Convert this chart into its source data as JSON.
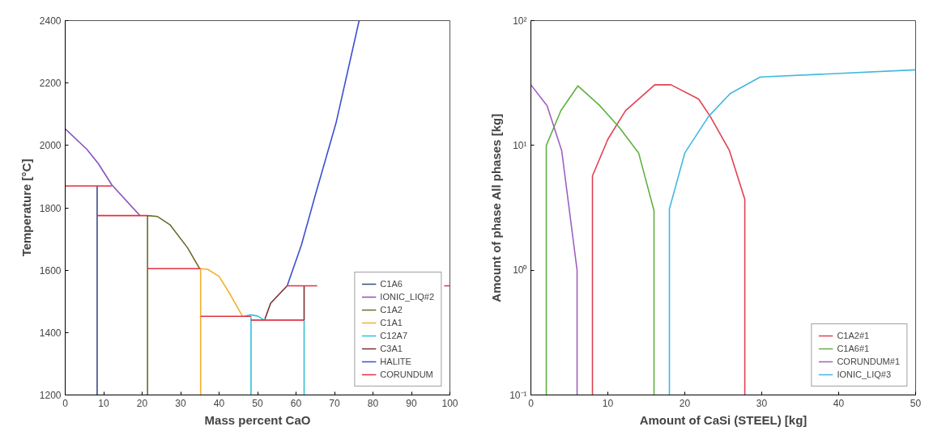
{
  "chart_data": [
    {
      "type": "line",
      "xlabel": "Mass percent CaO",
      "ylabel": "Temperature [°C]",
      "xlim": [
        0,
        100
      ],
      "ylim": [
        1200,
        2400
      ],
      "xticks": [
        0,
        10,
        20,
        30,
        40,
        50,
        60,
        70,
        80,
        90,
        100
      ],
      "yticks": [
        1200,
        1400,
        1600,
        1800,
        2000,
        2200,
        2400
      ],
      "grid": false,
      "legend": "bottom right",
      "line_style": "solid",
      "marker": "none",
      "series": [
        {
          "name": "C1A6",
          "color": "#3b4a8a",
          "x": [
            8.3,
            8.3
          ],
          "values": [
            1200,
            1870
          ]
        },
        {
          "name": "IONIC_LIQ#2",
          "color": "#8a50c0",
          "x": [
            0,
            5.6,
            8.6,
            12.1,
            19.5
          ],
          "values": [
            2053,
            1988,
            1942,
            1874,
            1774
          ]
        },
        {
          "name": "C1A2",
          "color": "#6b6b2a",
          "x": [
            21.4,
            21.4,
            null,
            21.4,
            24,
            27.2,
            31.8,
            34.9
          ],
          "values": [
            1200,
            1775,
            null,
            1775,
            1772,
            1746,
            1672,
            1606
          ]
        },
        {
          "name": "C1A1",
          "color": "#f0b030",
          "x": [
            35.2,
            35.2,
            null,
            35.2,
            37,
            40,
            43,
            46.1
          ],
          "values": [
            1200,
            1605,
            null,
            1605,
            1603,
            1580,
            1520,
            1452
          ]
        },
        {
          "name": "C12A7",
          "color": "#30c0d8",
          "x": [
            48.3,
            48.3,
            null,
            62.1,
            62.1,
            null,
            46.5,
            48.3,
            50,
            51.5
          ],
          "values": [
            1200,
            1452,
            null,
            1200,
            1440,
            null,
            1452,
            1457,
            1453,
            1442
          ]
        },
        {
          "name": "C3A1",
          "color": "#7a3030",
          "x": [
            51.9,
            53.4,
            57.7,
            null,
            62.1,
            62.1
          ],
          "values": [
            1443,
            1494,
            1550,
            null,
            1440,
            1550
          ]
        },
        {
          "name": "HALITE",
          "color": "#3a50d0",
          "x": [
            57.7,
            61.4,
            65.0,
            70.4,
            76.4
          ],
          "values": [
            1550,
            1681,
            1840,
            2072,
            2400
          ]
        },
        {
          "name": "CORUNDUM",
          "color": "#e03040",
          "x": [
            0,
            12.1,
            null,
            8.3,
            21.4,
            null,
            21.4,
            35.2,
            null,
            35.2,
            48.3,
            null,
            48.3,
            62.1,
            null,
            57.7,
            65.5,
            null,
            98.5,
            100
          ],
          "values": [
            1870,
            1870,
            null,
            1775,
            1775,
            null,
            1605,
            1605,
            null,
            1452,
            1452,
            null,
            1440,
            1440,
            null,
            1550,
            1550,
            null,
            1550,
            1550
          ]
        }
      ]
    },
    {
      "type": "line",
      "xlabel": "Amount of CaSi (STEEL) [kg]",
      "ylabel": "Amount of phase All phases [kg]",
      "xlim": [
        0,
        50
      ],
      "ylim": [
        0.1,
        100
      ],
      "log": "y",
      "xticks": [
        0,
        10,
        20,
        30,
        40,
        50
      ],
      "yticks": [
        {
          "value": 0.1,
          "label": "10⁻¹"
        },
        {
          "value": 1,
          "label": "10⁰"
        },
        {
          "value": 10,
          "label": "10¹"
        },
        {
          "value": 100,
          "label": "10²"
        }
      ],
      "grid": false,
      "legend": "bottom right",
      "line_style": "solid",
      "marker": "none",
      "series": [
        {
          "name": "C1A2#1",
          "color": "#e04050",
          "x": [
            8.0,
            8.0,
            10.0,
            12.3,
            16.1,
            18.2,
            21.8,
            23.3,
            25.8,
            27.8,
            27.8
          ],
          "values": [
            0.1,
            5.7,
            11.2,
            19,
            30.6,
            30.6,
            23.5,
            17.1,
            9.1,
            3.7,
            0.1
          ]
        },
        {
          "name": "C1A6#1",
          "color": "#60b040",
          "x": [
            2.0,
            2.0,
            3.9,
            6.1,
            8.9,
            11.5,
            14.0,
            16.0,
            16.0
          ],
          "values": [
            0.1,
            10,
            19,
            30,
            21,
            13.9,
            8.7,
            3,
            0.1
          ]
        },
        {
          "name": "CORUNDUM#1",
          "color": "#a060c0",
          "x": [
            0,
            2.1,
            4.0,
            6.0,
            6.0
          ],
          "values": [
            30.6,
            20.8,
            9.1,
            1.0,
            0.1
          ]
        },
        {
          "name": "IONIC_LIQ#3",
          "color": "#40b8e0",
          "x": [
            18.0,
            18.0,
            20.0,
            23.1,
            25.9,
            29.8,
            50
          ],
          "values": [
            0.1,
            3.1,
            8.7,
            17.1,
            26,
            35.3,
            40.3
          ]
        }
      ]
    }
  ]
}
